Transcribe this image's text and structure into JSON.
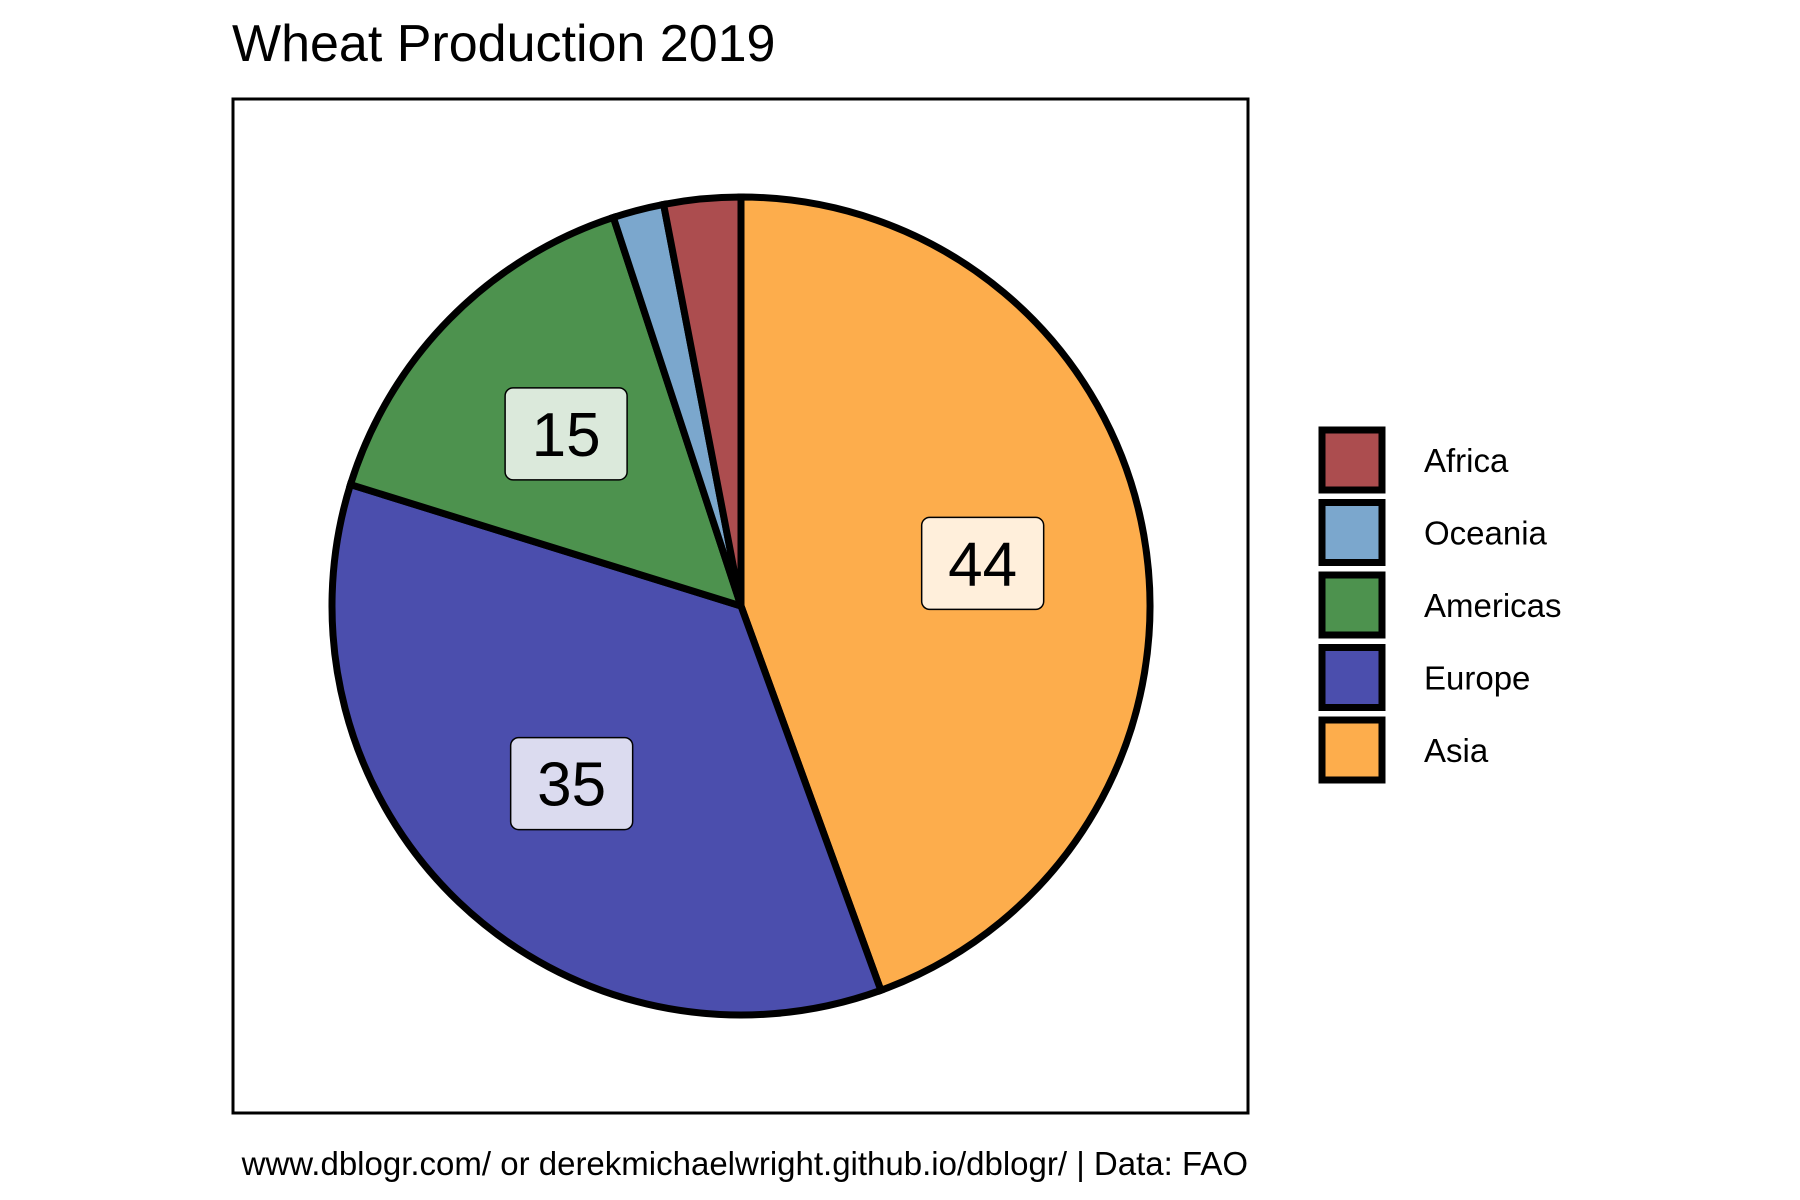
{
  "chart_data": {
    "type": "pie",
    "title": "Wheat Production 2019",
    "caption": "www.dblogr.com/ or derekmichaelwright.github.io/dblogr/ | Data: FAO",
    "slices": [
      {
        "name": "Asia",
        "value": 44,
        "color": "#FDAD4C",
        "label": "44"
      },
      {
        "name": "Europe",
        "value": 35,
        "color": "#4B4EAD",
        "label": "35"
      },
      {
        "name": "Americas",
        "value": 15,
        "color": "#4D924E",
        "label": "15"
      },
      {
        "name": "Oceania",
        "value": 2,
        "color": "#7BA7CD",
        "label": ""
      },
      {
        "name": "Africa",
        "value": 3,
        "color": "#AC4D4F",
        "label": ""
      }
    ],
    "legend": {
      "placement": "right",
      "order": [
        "Africa",
        "Oceania",
        "Americas",
        "Europe",
        "Asia"
      ]
    },
    "start_angle_deg": 0,
    "direction": "clockwise"
  }
}
